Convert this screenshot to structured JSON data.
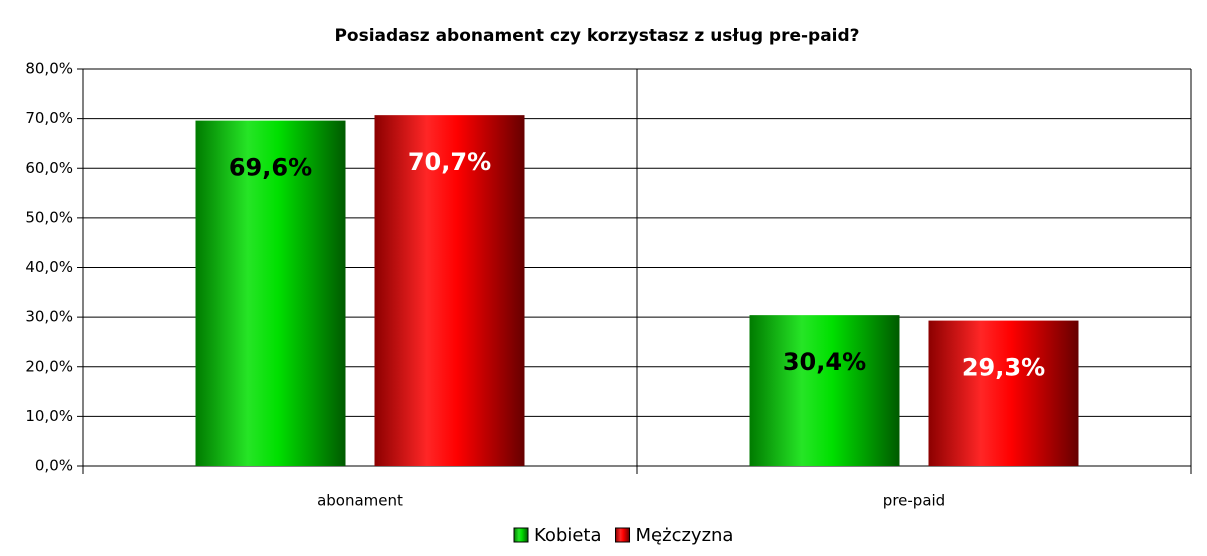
{
  "chart_data": {
    "type": "bar",
    "title": "Posiadasz abonament czy korzystasz z usług pre-paid?",
    "categories": [
      "abonament",
      "pre-paid"
    ],
    "series": [
      {
        "name": "Kobieta",
        "color": "#00e000",
        "values": [
          69.6,
          30.4
        ],
        "value_labels": [
          "69,6%",
          "30,4%"
        ]
      },
      {
        "name": "Mężczyzna",
        "color": "#ff0000",
        "values": [
          70.7,
          29.3
        ],
        "value_labels": [
          "70,7%",
          "29,3%"
        ]
      }
    ],
    "ylim": [
      0,
      80
    ],
    "yticks": [
      {
        "value": 0,
        "label": "0,0%"
      },
      {
        "value": 10,
        "label": "10,0%"
      },
      {
        "value": 20,
        "label": "20,0%"
      },
      {
        "value": 30,
        "label": "30,0%"
      },
      {
        "value": 40,
        "label": "40,0%"
      },
      {
        "value": 50,
        "label": "50,0%"
      },
      {
        "value": 60,
        "label": "60,0%"
      },
      {
        "value": 70,
        "label": "70,0%"
      },
      {
        "value": 80,
        "label": "80,0%"
      }
    ],
    "grid": true,
    "legend": "bottom"
  }
}
